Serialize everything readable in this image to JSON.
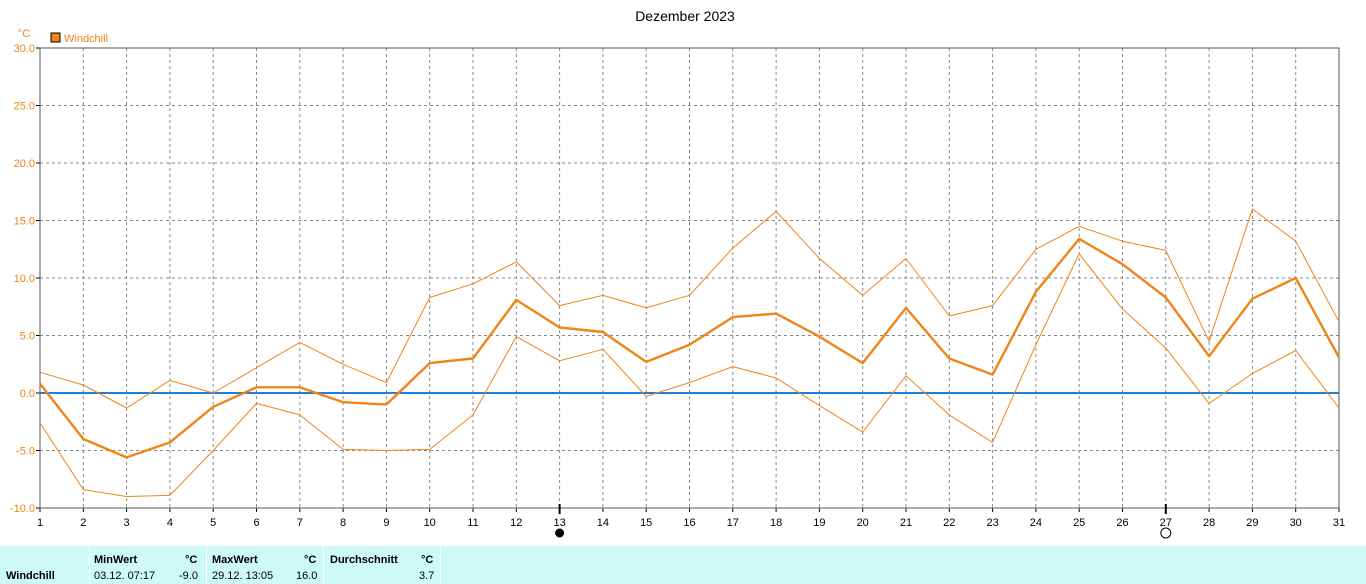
{
  "chart_data": {
    "type": "line",
    "title": "Dezember 2023",
    "y_unit": "°C",
    "ylim": [
      -10,
      30
    ],
    "y_ticks": [
      "30.0",
      "25.0",
      "20.0",
      "15.0",
      "10.0",
      "5.0",
      "0.0",
      "-5.0",
      "-10.0"
    ],
    "x_categories": [
      "1",
      "2",
      "3",
      "4",
      "5",
      "6",
      "7",
      "8",
      "9",
      "10",
      "11",
      "12",
      "13",
      "14",
      "15",
      "16",
      "17",
      "18",
      "19",
      "20",
      "21",
      "22",
      "23",
      "24",
      "25",
      "26",
      "27",
      "28",
      "29",
      "30",
      "31"
    ],
    "grid": true,
    "legend": {
      "position": "top-left",
      "label": "Windchill"
    },
    "series": [
      {
        "name": "Windchill",
        "values": [
          0.8,
          -4.0,
          -5.6,
          -4.3,
          -1.2,
          0.5,
          0.5,
          -0.8,
          -1.0,
          2.6,
          3.0,
          8.1,
          5.7,
          5.3,
          2.7,
          4.2,
          6.6,
          6.9,
          4.9,
          2.6,
          7.4,
          3.0,
          1.6,
          8.8,
          13.4,
          11.2,
          8.3,
          3.2,
          8.2,
          10.0,
          3.1
        ]
      },
      {
        "role": "daily-max",
        "values": [
          1.8,
          0.7,
          -1.3,
          1.1,
          0.0,
          2.2,
          4.4,
          2.5,
          0.9,
          8.3,
          9.5,
          11.4,
          7.6,
          8.5,
          7.4,
          8.5,
          12.6,
          15.8,
          11.7,
          8.5,
          11.7,
          6.7,
          7.6,
          12.5,
          14.5,
          13.2,
          12.4,
          4.5,
          16.0,
          13.2,
          6.2
        ]
      },
      {
        "role": "daily-min",
        "values": [
          -2.6,
          -8.4,
          -9.0,
          -8.9,
          -5.0,
          -0.9,
          -1.9,
          -4.9,
          -5.0,
          -4.9,
          -1.9,
          4.9,
          2.8,
          3.8,
          -0.3,
          0.9,
          2.3,
          1.3,
          -1.1,
          -3.4,
          1.5,
          -1.9,
          -4.3,
          4.2,
          12.1,
          7.3,
          3.9,
          -0.9,
          1.7,
          3.7,
          -1.3
        ]
      }
    ],
    "reference_line": {
      "y": 0,
      "color": "#1e7fd6"
    },
    "moon_phases": [
      {
        "day": "13",
        "phase": "new-moon"
      },
      {
        "day": "27",
        "phase": "full-moon"
      }
    ],
    "colors": {
      "series": "#f08418",
      "grid": "#888888",
      "axis": "#000000"
    }
  },
  "footer": {
    "row_label": "Windchill",
    "min": {
      "header": "MinWert",
      "unit": "°C",
      "when": "03.12.  07:17",
      "value": "-9.0"
    },
    "max": {
      "header": "MaxWert",
      "unit": "°C",
      "when": "29.12.  13:05",
      "value": "16.0"
    },
    "avg": {
      "header": "Durchschnitt",
      "unit": "°C",
      "value": "3.7"
    },
    "background": "#cdfaf7"
  }
}
